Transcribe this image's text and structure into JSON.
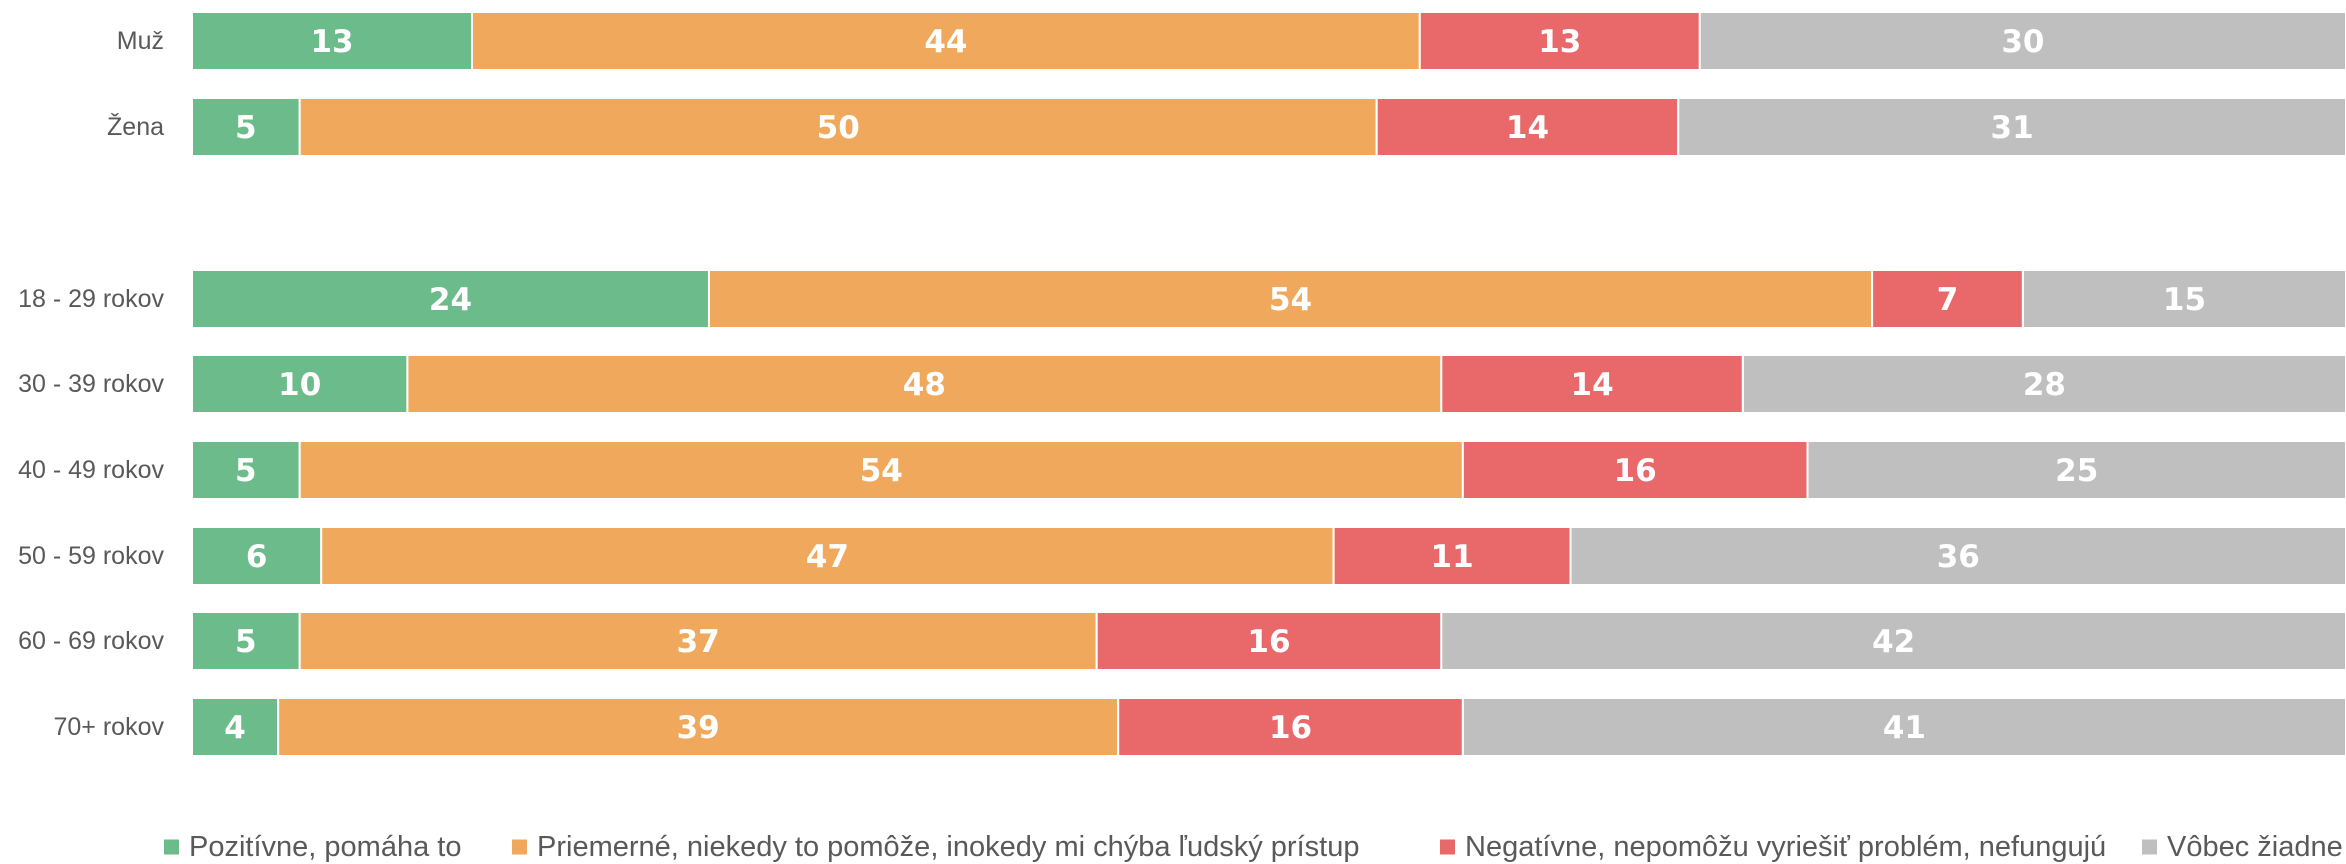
{
  "chart_data": {
    "type": "bar",
    "orientation": "horizontal",
    "stacked": true,
    "categories": [
      "Muž",
      "Žena",
      "18 - 29 rokov",
      "30 - 39 rokov",
      "40 - 49 rokov",
      "50 - 59 rokov",
      "60 - 69 rokov",
      "70+ rokov"
    ],
    "groups": [
      [
        "Muž",
        "Žena"
      ],
      [
        "18 - 29 rokov",
        "30 - 39 rokov",
        "40 - 49 rokov",
        "50 - 59 rokov",
        "60 - 69 rokov",
        "70+ rokov"
      ]
    ],
    "series": [
      {
        "name": "Pozitívne, pomáha to",
        "color": "#6cbb8a",
        "values": [
          13,
          5,
          24,
          10,
          5,
          6,
          5,
          4
        ]
      },
      {
        "name": "Priemerné, niekedy to pomôže, inokedy mi chýba ľudský prístup",
        "color": "#f0a95c",
        "values": [
          44,
          50,
          54,
          48,
          54,
          47,
          37,
          39
        ]
      },
      {
        "name": "Negatívne, nepomôžu vyriešiť problém, nefungujú",
        "color": "#e9686a",
        "values": [
          13,
          14,
          7,
          14,
          16,
          11,
          16,
          16
        ]
      },
      {
        "name": "Vôbec žiadne",
        "color": "#bfbfbf",
        "values": [
          30,
          31,
          15,
          28,
          25,
          36,
          42,
          41
        ]
      }
    ],
    "legend_position": "bottom",
    "grid": false
  }
}
